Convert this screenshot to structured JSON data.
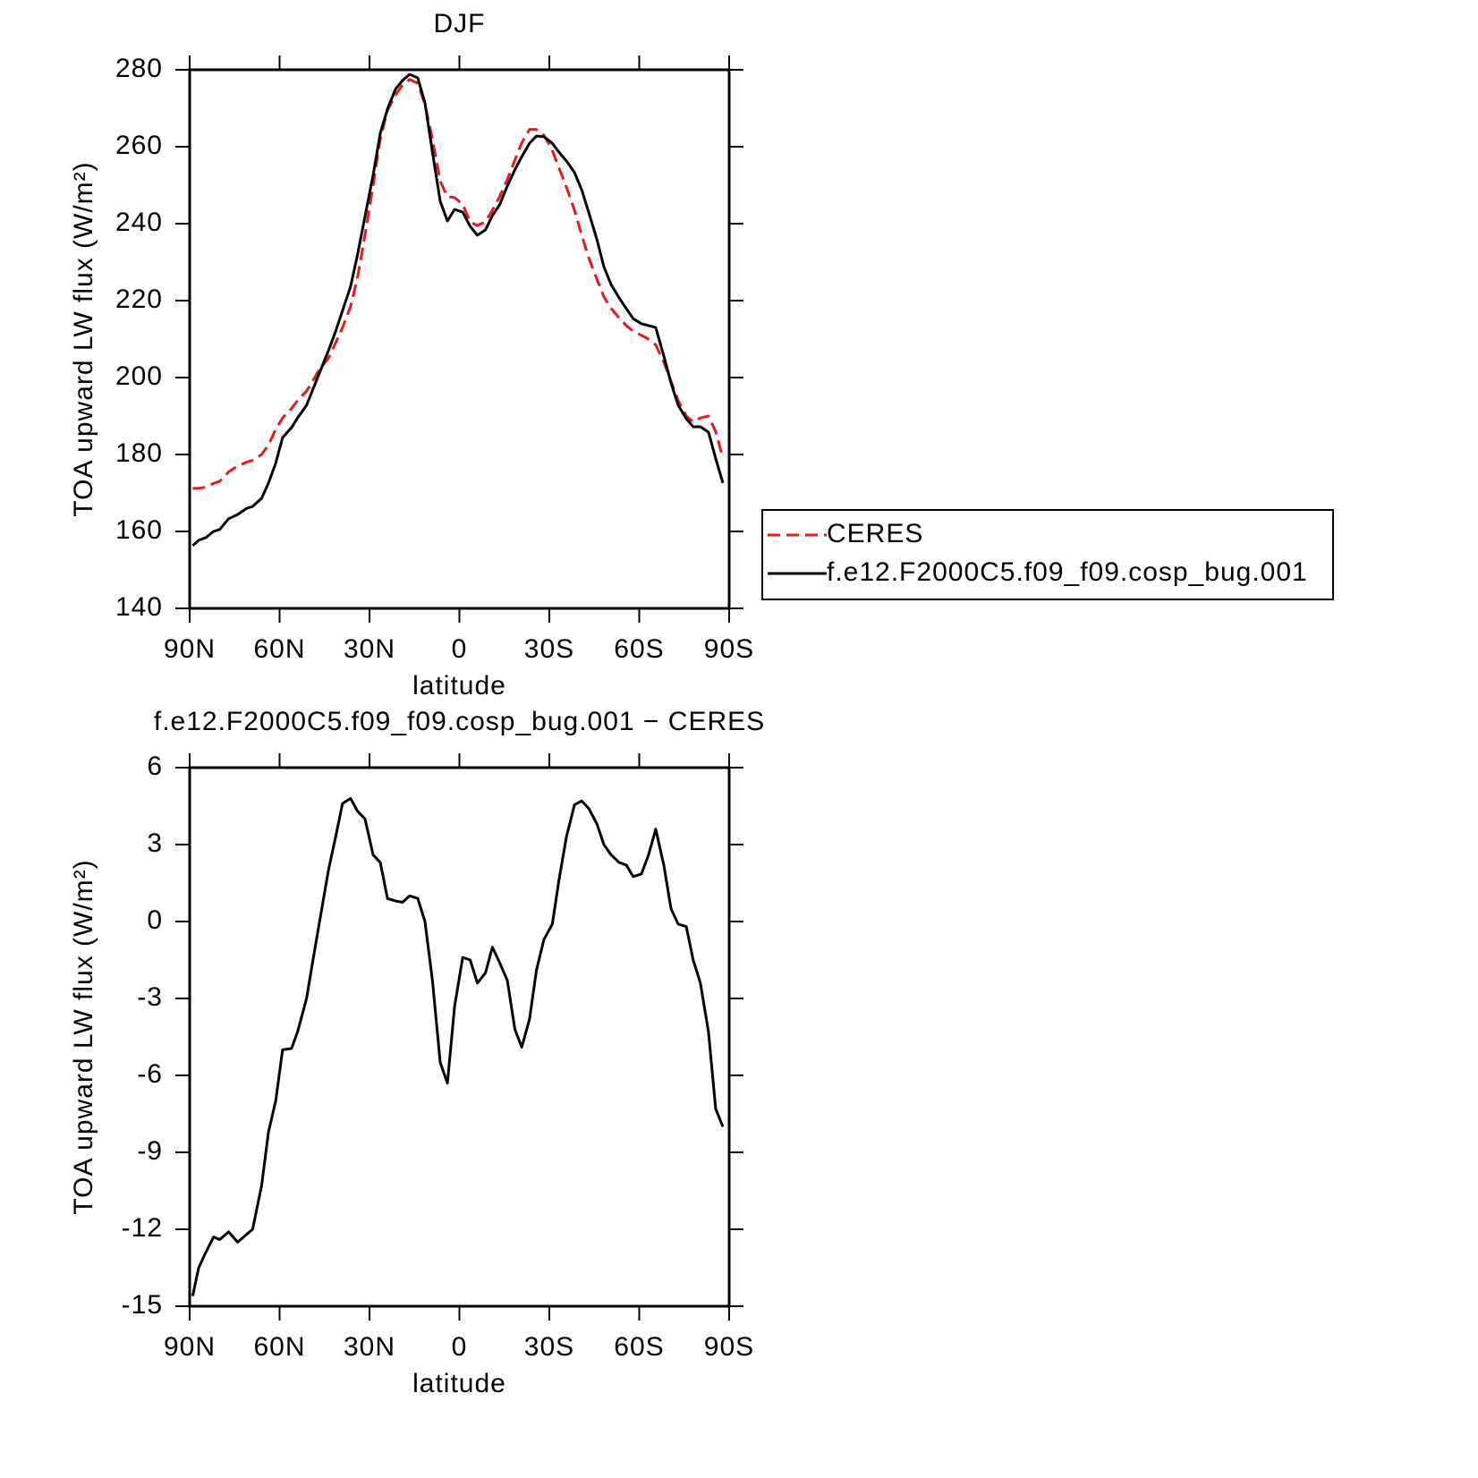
{
  "chart_data": [
    {
      "type": "line",
      "title": "DJF",
      "xlabel": "latitude",
      "ylabel": "TOA upward LW flux (W/m²)",
      "x": [
        89,
        87,
        84.6,
        82,
        80,
        77,
        74,
        71,
        69,
        66,
        63.7,
        61.3,
        59,
        56,
        54,
        51,
        49,
        46.8,
        43.7,
        41.3,
        39,
        36.3,
        34,
        31.5,
        28.8,
        26.4,
        24,
        21.3,
        19,
        16.6,
        13.9,
        11.5,
        9,
        6.4,
        4,
        1.6,
        -1.1,
        -3.6,
        -6,
        -8.7,
        -11,
        -13.4,
        -16,
        -18.5,
        -20.8,
        -23.4,
        -25.7,
        -28.2,
        -31,
        -33.2,
        -35.7,
        -38.4,
        -40.8,
        -43.2,
        -45.9,
        -48.2,
        -50.6,
        -53.3,
        -55.7,
        -58,
        -60.7,
        -63.1,
        -65.5,
        -68.2,
        -70.6,
        -73,
        -75.7,
        -78,
        -80.4,
        -83.1,
        -85.5,
        -87.9
      ],
      "series": [
        {
          "name": "CERES",
          "color": "#e8191c",
          "linestyle": "dashed",
          "values": [
            171.2,
            171.2,
            171.5,
            172.5,
            173,
            175.5,
            177,
            178,
            178.5,
            180,
            182.5,
            186.5,
            189.5,
            192,
            194,
            196.5,
            199,
            202,
            205,
            209,
            213,
            218.5,
            226,
            237,
            250,
            262,
            269.5,
            273.5,
            276,
            277.5,
            276.5,
            271,
            262,
            251,
            247,
            246.8,
            245,
            240.5,
            239.5,
            240.5,
            243.5,
            247,
            251.5,
            256.5,
            261,
            264.5,
            264.5,
            263,
            259,
            254.5,
            249.5,
            243.5,
            237,
            231,
            225.5,
            221,
            218,
            215.5,
            213.5,
            212,
            211,
            210,
            208.5,
            204,
            199,
            194,
            190,
            188.5,
            189.5,
            190,
            186,
            179
          ]
        },
        {
          "name": "f.e12.F2000C5.f09_f09.cosp_bug.001",
          "color": "#000000",
          "linestyle": "solid",
          "values": [
            156.3,
            157.7,
            158.4,
            160,
            160.5,
            163.3,
            164.4,
            166,
            166.5,
            168.6,
            172.6,
            177.7,
            184.4,
            187,
            189.5,
            192.8,
            196.7,
            201,
            207,
            212,
            217.4,
            223.7,
            231.9,
            241.9,
            252.6,
            263.5,
            269.8,
            275,
            277.2,
            278.8,
            277.9,
            271.4,
            258.6,
            245.8,
            240.7,
            243.7,
            243,
            239.3,
            237,
            238.4,
            242.1,
            244.9,
            249.8,
            254,
            257.4,
            260.9,
            262.8,
            262.6,
            260.9,
            258.6,
            256.3,
            253.3,
            248.8,
            242.8,
            235.8,
            228.8,
            224.2,
            220.7,
            217.9,
            215.3,
            214,
            213.5,
            213,
            205.6,
            198.6,
            192.8,
            189.3,
            187.2,
            187.2,
            185.8,
            179,
            172.6
          ]
        }
      ],
      "xlim": [
        90,
        -90
      ],
      "xticks": [
        {
          "value": 90,
          "label": "90N"
        },
        {
          "value": 60,
          "label": "60N"
        },
        {
          "value": 30,
          "label": "30N"
        },
        0,
        {
          "value": -30,
          "label": "30S"
        },
        {
          "value": -60,
          "label": "60S"
        },
        {
          "value": -90,
          "label": "90S"
        }
      ],
      "ylim": [
        140,
        280
      ],
      "yticks": [
        140,
        160,
        180,
        200,
        220,
        240,
        260,
        280
      ],
      "legend": "outside-right"
    },
    {
      "type": "line",
      "title": "f.e12.F2000C5.f09_f09.cosp_bug.001 − CERES",
      "xlabel": "latitude",
      "ylabel": "TOA upward LW flux (W/m²)",
      "x": [
        89,
        87,
        84.6,
        82,
        80,
        77,
        74,
        71,
        69,
        66,
        63.7,
        61.3,
        59,
        56,
        54,
        51,
        49,
        46.8,
        43.7,
        41.3,
        39,
        36.3,
        34,
        31.5,
        28.8,
        26.4,
        24,
        21.3,
        19,
        16.6,
        13.9,
        11.5,
        9,
        6.4,
        4,
        1.6,
        -1.1,
        -3.6,
        -6,
        -8.7,
        -11,
        -13.4,
        -16,
        -18.5,
        -20.8,
        -23.4,
        -25.7,
        -28.2,
        -31,
        -33.2,
        -35.7,
        -38.4,
        -40.8,
        -43.2,
        -45.9,
        -48.2,
        -50.6,
        -53.3,
        -55.7,
        -58,
        -60.7,
        -63.1,
        -65.5,
        -68.2,
        -70.6,
        -73,
        -75.7,
        -78,
        -80.4,
        -83.1,
        -85.5,
        -87.9
      ],
      "color": "#000000",
      "values": [
        -14.6,
        -13.5,
        -12.9,
        -12.3,
        -12.4,
        -12.1,
        -12.5,
        -12.2,
        -12.0,
        -10.3,
        -8.2,
        -7.0,
        -5.0,
        -4.95,
        -4.3,
        -3.0,
        -1.6,
        -0.1,
        2.0,
        3.3,
        4.6,
        4.8,
        4.3,
        4.0,
        2.6,
        2.3,
        0.9,
        0.8,
        0.75,
        1.0,
        0.9,
        0.0,
        -2.3,
        -5.5,
        -6.3,
        -3.3,
        -1.4,
        -1.5,
        -2.4,
        -2.0,
        -1.0,
        -1.6,
        -2.3,
        -4.2,
        -4.9,
        -3.8,
        -1.9,
        -0.7,
        -0.1,
        1.6,
        3.3,
        4.55,
        4.7,
        4.4,
        3.8,
        3.0,
        2.6,
        2.3,
        2.2,
        1.75,
        1.85,
        2.6,
        3.6,
        2.2,
        0.5,
        -0.1,
        -0.2,
        -1.5,
        -2.4,
        -4.3,
        -7.3,
        -8.0
      ],
      "xlim": [
        90,
        -90
      ],
      "xticks": [
        {
          "value": 90,
          "label": "90N"
        },
        {
          "value": 60,
          "label": "60N"
        },
        {
          "value": 30,
          "label": "30N"
        },
        0,
        {
          "value": -30,
          "label": "30S"
        },
        {
          "value": -60,
          "label": "60S"
        },
        {
          "value": -90,
          "label": "90S"
        }
      ],
      "ylim": [
        -15,
        6
      ],
      "yticks": [
        -15,
        -12,
        -9,
        -6,
        -3,
        0,
        3,
        6
      ]
    }
  ]
}
